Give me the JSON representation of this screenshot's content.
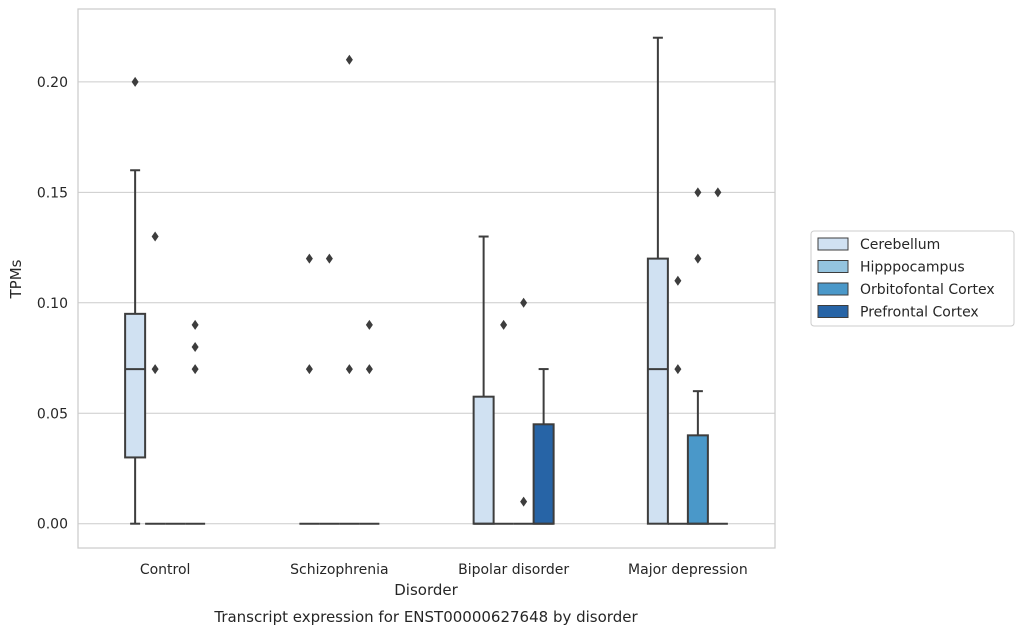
{
  "chart_data": {
    "type": "box",
    "title": "",
    "caption": "Transcript expression for ENST00000627648 by disorder",
    "xlabel": "Disorder",
    "ylabel": "TPMs",
    "ylim": [
      -0.011,
      0.233
    ],
    "yticks": [
      "0.00",
      "0.05",
      "0.10",
      "0.15",
      "0.20"
    ],
    "yticks_values": [
      0.0,
      0.05,
      0.1,
      0.15,
      0.2
    ],
    "grid": "horizontal",
    "legend_position": "right",
    "categories": [
      "Control",
      "Schizophrenia",
      "Bipolar disorder",
      "Major depression"
    ],
    "series": [
      {
        "name": "Cerebellum",
        "color": "#d0e1f2",
        "boxes": [
          {
            "q1": 0.03,
            "median": 0.07,
            "q3": 0.095,
            "whisker_low": 0.0,
            "whisker_high": 0.16,
            "outliers": [
              0.2
            ]
          },
          {
            "q1": 0.0,
            "median": 0.0,
            "q3": 0.0,
            "whisker_low": 0.0,
            "whisker_high": 0.0,
            "outliers": [
              0.12,
              0.07
            ]
          },
          {
            "q1": 0.0,
            "median": 0.0,
            "q3": 0.0575,
            "whisker_low": 0.0,
            "whisker_high": 0.13,
            "outliers": []
          },
          {
            "q1": 0.0,
            "median": 0.07,
            "q3": 0.12,
            "whisker_low": 0.0,
            "whisker_high": 0.22,
            "outliers": []
          }
        ]
      },
      {
        "name": "Hipppocampus",
        "color": "#94c4df",
        "boxes": [
          {
            "q1": 0.0,
            "median": 0.0,
            "q3": 0.0,
            "whisker_low": 0.0,
            "whisker_high": 0.0,
            "outliers": [
              0.13,
              0.07
            ]
          },
          {
            "q1": 0.0,
            "median": 0.0,
            "q3": 0.0,
            "whisker_low": 0.0,
            "whisker_high": 0.0,
            "outliers": [
              0.12
            ]
          },
          {
            "q1": 0.0,
            "median": 0.0,
            "q3": 0.0,
            "whisker_low": 0.0,
            "whisker_high": 0.0,
            "outliers": [
              0.09
            ]
          },
          {
            "q1": 0.0,
            "median": 0.0,
            "q3": 0.0,
            "whisker_low": 0.0,
            "whisker_high": 0.0,
            "outliers": [
              0.11,
              0.07
            ]
          }
        ]
      },
      {
        "name": "Orbitofontal Cortex",
        "color": "#4a98c9",
        "boxes": [
          {
            "q1": 0.0,
            "median": 0.0,
            "q3": 0.0,
            "whisker_low": 0.0,
            "whisker_high": 0.0,
            "outliers": []
          },
          {
            "q1": 0.0,
            "median": 0.0,
            "q3": 0.0,
            "whisker_low": 0.0,
            "whisker_high": 0.0,
            "outliers": [
              0.21,
              0.07
            ]
          },
          {
            "q1": 0.0,
            "median": 0.0,
            "q3": 0.0,
            "whisker_low": 0.0,
            "whisker_high": 0.0,
            "outliers": [
              0.1,
              0.01
            ]
          },
          {
            "q1": 0.0,
            "median": 0.0,
            "q3": 0.04,
            "whisker_low": 0.0,
            "whisker_high": 0.06,
            "outliers": [
              0.15,
              0.12
            ]
          }
        ]
      },
      {
        "name": "Prefrontal Cortex",
        "color": "#2764a6",
        "boxes": [
          {
            "q1": 0.0,
            "median": 0.0,
            "q3": 0.0,
            "whisker_low": 0.0,
            "whisker_high": 0.0,
            "outliers": [
              0.09,
              0.08,
              0.07
            ]
          },
          {
            "q1": 0.0,
            "median": 0.0,
            "q3": 0.0,
            "whisker_low": 0.0,
            "whisker_high": 0.0,
            "outliers": [
              0.09,
              0.07
            ]
          },
          {
            "q1": 0.0,
            "median": 0.0,
            "q3": 0.045,
            "whisker_low": 0.0,
            "whisker_high": 0.07,
            "outliers": []
          },
          {
            "q1": 0.0,
            "median": 0.0,
            "q3": 0.0,
            "whisker_low": 0.0,
            "whisker_high": 0.0,
            "outliers": [
              0.15
            ]
          }
        ]
      }
    ]
  }
}
